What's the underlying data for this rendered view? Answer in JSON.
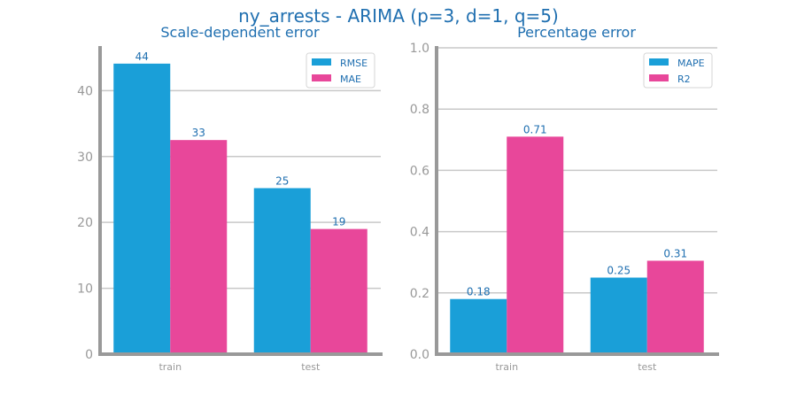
{
  "figure": {
    "title": "ny_arrests - ARIMA (p=3, d=1, q=5)"
  },
  "colors": {
    "series_a": "#1a9fd8",
    "series_b": "#e8479a",
    "title": "#1f6fb0",
    "axis": "#999999",
    "grid": "#c8c8c8",
    "label": "#1f6fb0"
  },
  "chart_data": [
    {
      "type": "bar",
      "title": "Scale-dependent error",
      "categories": [
        "train",
        "test"
      ],
      "series": [
        {
          "name": "RMSE",
          "values": [
            44.1,
            25.2
          ],
          "labels": [
            "44",
            "25"
          ]
        },
        {
          "name": "MAE",
          "values": [
            32.5,
            19.0
          ],
          "labels": [
            "33",
            "19"
          ]
        }
      ],
      "ylim": [
        0,
        46.5
      ],
      "yticks": [
        0,
        10,
        20,
        30,
        40
      ],
      "ytick_labels": [
        "0",
        "10",
        "20",
        "30",
        "40"
      ],
      "grid": "y",
      "legend": "top-right"
    },
    {
      "type": "bar",
      "title": "Percentage error",
      "categories": [
        "train",
        "test"
      ],
      "series": [
        {
          "name": "MAPE",
          "values": [
            0.18,
            0.25
          ],
          "labels": [
            "0.18",
            "0.25"
          ]
        },
        {
          "name": "R2",
          "values": [
            0.71,
            0.305
          ],
          "labels": [
            "0.71",
            "0.31"
          ]
        }
      ],
      "ylim": [
        0,
        1.0
      ],
      "yticks": [
        0,
        0.2,
        0.4,
        0.6,
        0.8,
        1.0
      ],
      "ytick_labels": [
        "0.0",
        "0.2",
        "0.4",
        "0.6",
        "0.8",
        "1.0"
      ],
      "grid": "y",
      "legend": "top-right"
    }
  ]
}
